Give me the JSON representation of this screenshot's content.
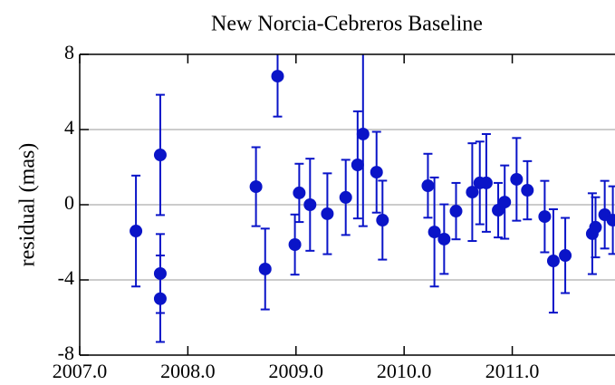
{
  "chart_data": {
    "type": "scatter",
    "title": "New Norcia-Cebreros Baseline",
    "ylabel": "residual (mas)",
    "x": [
      2007.52,
      2007.745,
      2007.745,
      2007.745,
      2008.63,
      2008.715,
      2008.83,
      2008.99,
      2009.03,
      2009.13,
      2009.29,
      2009.46,
      2009.57,
      2009.62,
      2009.745,
      2009.8,
      2010.22,
      2010.28,
      2010.37,
      2010.48,
      2010.63,
      2010.7,
      2010.76,
      2010.87,
      2010.93,
      2011.04,
      2011.14,
      2011.3,
      2011.38,
      2011.49,
      2011.74,
      2011.77,
      2011.855,
      2011.93
    ],
    "series": [
      {
        "color": "#0a14c8",
        "values": [
          -1.4,
          2.65,
          -3.66,
          -5.0,
          0.96,
          -3.42,
          6.84,
          -2.12,
          0.63,
          0.0,
          -0.48,
          0.39,
          2.12,
          3.76,
          1.73,
          -0.82,
          1.01,
          -1.45,
          -1.83,
          -0.34,
          0.67,
          1.16,
          1.16,
          -0.29,
          0.14,
          1.35,
          0.77,
          -0.63,
          -2.99,
          -2.7,
          -1.54,
          -1.2,
          -0.53,
          -0.82
        ],
        "errors": [
          2.95,
          3.2,
          2.1,
          2.3,
          2.1,
          2.15,
          2.15,
          1.6,
          1.55,
          2.45,
          2.15,
          2.0,
          2.85,
          4.9,
          2.15,
          2.1,
          1.7,
          2.9,
          1.85,
          1.5,
          2.6,
          2.2,
          2.6,
          1.45,
          1.95,
          2.2,
          1.55,
          1.9,
          2.75,
          2.0,
          2.15,
          1.6,
          1.8,
          1.8
        ]
      }
    ],
    "xlim": [
      2007.0,
      2011.95
    ],
    "ylim": [
      -8,
      8
    ],
    "xticks": [
      {
        "value": 2007,
        "label": "2007.0"
      },
      {
        "value": 2008,
        "label": "2008.0"
      },
      {
        "value": 2009,
        "label": "2009.0"
      },
      {
        "value": 2010,
        "label": "2010.0"
      },
      {
        "value": 2011,
        "label": "2011.0"
      }
    ],
    "yticks": [
      -8,
      -4,
      0,
      4,
      8
    ],
    "grid": true
  }
}
